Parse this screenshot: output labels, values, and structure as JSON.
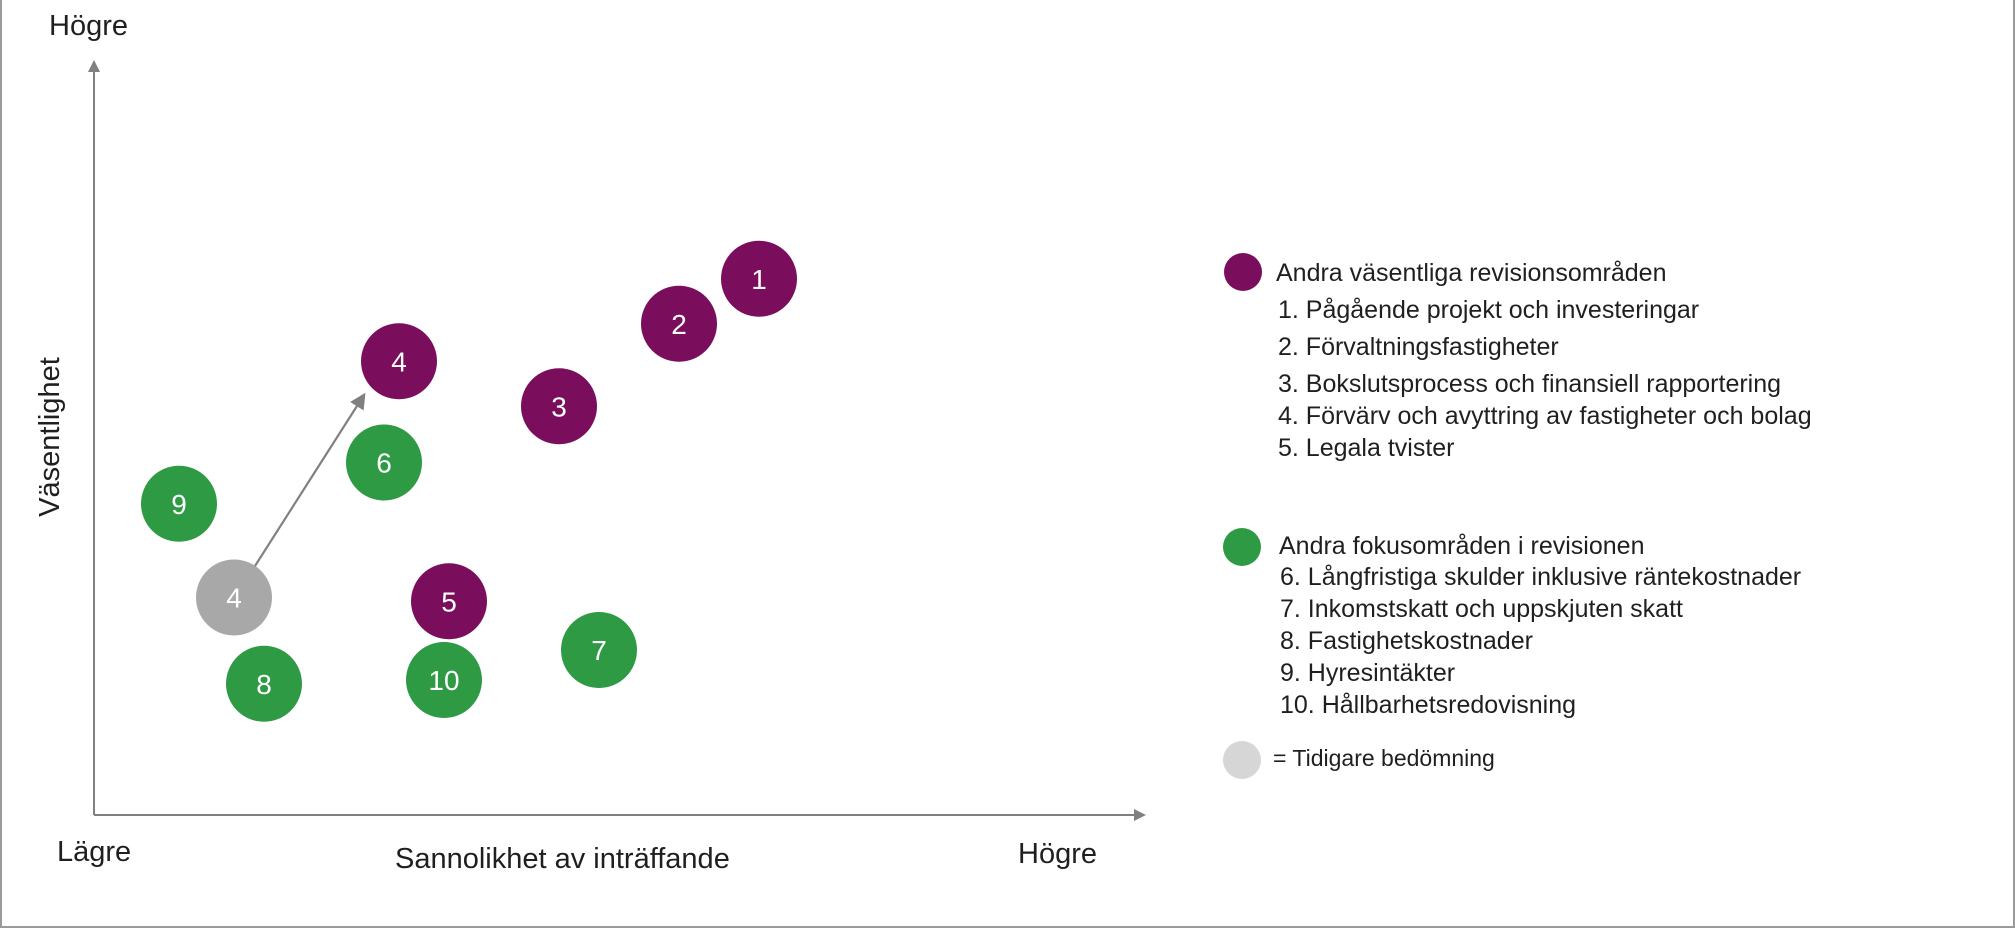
{
  "axes": {
    "y_top_label": "Högre",
    "y_title": "Väsentlighet",
    "x_left_label": "Lägre",
    "x_title": "Sannolikhet av inträffande",
    "x_right_label": "Högre"
  },
  "colors": {
    "purple": "#7a0e5c",
    "green": "#2e9a44",
    "grey": "#a8a8a8",
    "grey_legend": "#d6d6d6",
    "axis": "#808080"
  },
  "chart_data": {
    "type": "scatter",
    "x_range": [
      0,
      100
    ],
    "y_range": [
      0,
      100
    ],
    "grid": false,
    "points": [
      {
        "label": "1",
        "group": "purple",
        "x": 66.5,
        "y": 71.5
      },
      {
        "label": "2",
        "group": "purple",
        "x": 58.5,
        "y": 65.5
      },
      {
        "label": "3",
        "group": "purple",
        "x": 46.5,
        "y": 54.5
      },
      {
        "label": "4",
        "group": "purple",
        "x": 30.5,
        "y": 60.5
      },
      {
        "label": "5",
        "group": "purple",
        "x": 35.5,
        "y": 28.5
      },
      {
        "label": "6",
        "group": "green",
        "x": 29,
        "y": 47
      },
      {
        "label": "7",
        "group": "green",
        "x": 50.5,
        "y": 22
      },
      {
        "label": "8",
        "group": "green",
        "x": 17,
        "y": 17.5
      },
      {
        "label": "9",
        "group": "green",
        "x": 8.5,
        "y": 41.5
      },
      {
        "label": "10",
        "group": "green",
        "x": 35,
        "y": 18
      },
      {
        "label": "4",
        "group": "grey",
        "x": 14,
        "y": 29
      }
    ],
    "arrow": {
      "from": [
        16,
        33
      ],
      "to": [
        27,
        56
      ]
    }
  },
  "legend": {
    "group1": {
      "title": "Andra väsentliga revisionsområden",
      "items": [
        "1. Pågående projekt och investeringar",
        "2. Förvaltningsfastigheter",
        "3. Bokslutsprocess och finansiell rapportering",
        "4. Förvärv och avyttring av fastigheter och bolag",
        "5. Legala tvister"
      ]
    },
    "group2": {
      "title": "Andra fokusområden i revisionen",
      "items": [
        "6. Långfristiga skulder inklusive räntekostnader",
        "7. Inkomstskatt och uppskjuten skatt",
        "8. Fastighetskostnader",
        "9. Hyresintäkter",
        "10. Hållbarhetsredovisning"
      ]
    },
    "note": "= Tidigare bedömning"
  }
}
